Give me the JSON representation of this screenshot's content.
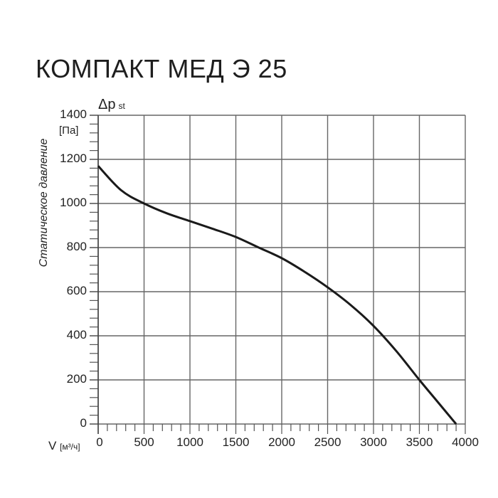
{
  "title": "КОМПАКТ МЕД Э 25",
  "chart_data": {
    "type": "line",
    "title": "КОМПАКТ МЕД Э 25",
    "xlabel": "V [м³/ч]",
    "ylabel": "Статическое давление",
    "ylabel_symbol": "Δp st",
    "ylabel_unit": "[Па]",
    "xlim": [
      0,
      4000
    ],
    "ylim": [
      0,
      1400
    ],
    "x_ticks": [
      0,
      500,
      1000,
      1500,
      2000,
      2500,
      3000,
      3500,
      4000
    ],
    "y_ticks": [
      0,
      200,
      400,
      600,
      800,
      1000,
      1200,
      1400
    ],
    "x_minor_step": 100,
    "y_minor_step": 40,
    "grid": true,
    "series": [
      {
        "name": "КОМПАКТ МЕД Э 25",
        "x": [
          0,
          250,
          500,
          750,
          1000,
          1250,
          1500,
          1750,
          2000,
          2250,
          2500,
          2750,
          3000,
          3250,
          3500,
          3700,
          3900
        ],
        "y": [
          1170,
          1060,
          1000,
          955,
          920,
          885,
          848,
          800,
          752,
          690,
          620,
          540,
          445,
          330,
          200,
          100,
          0
        ]
      }
    ]
  },
  "labels": {
    "y_symbol": "Δp",
    "y_symbol_sub": "st",
    "y_unit": "[Па]",
    "y_axis_title": "Статическое давление",
    "x_axis_title": "V",
    "x_unit": "[м³/ч]"
  }
}
